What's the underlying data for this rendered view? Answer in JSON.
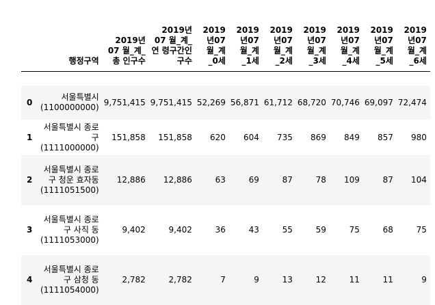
{
  "table": {
    "columns": [
      "",
      "행정구역",
      "2019년07 월_계_총 인구수",
      "2019년07 월_계_연 령구간인 구수",
      "2019 년07 월_계 _0세",
      "2019 년07 월_계 _1세",
      "2019 년07 월_계 _2세",
      "2019 년07 월_계 _3세",
      "2019 년07 월_계 _4세",
      "2019 년07 월_계 _5세",
      "2019 년07 월_계 _6세"
    ],
    "rows": [
      {
        "index": "0",
        "cells": [
          "서울특별시 (1100000000)",
          "9,751,415",
          "9,751,415",
          "52,269",
          "56,871",
          "61,712",
          "68,720",
          "70,746",
          "69,097",
          "72,474"
        ]
      },
      {
        "index": "1",
        "cells": [
          "서울특별시 종로구 (1111000000)",
          "151,858",
          "151,858",
          "620",
          "604",
          "735",
          "869",
          "849",
          "857",
          "980"
        ]
      },
      {
        "index": "2",
        "cells": [
          "서울특별시 종로구 청운 효자동 (1111051500)",
          "12,886",
          "12,886",
          "63",
          "69",
          "87",
          "78",
          "109",
          "87",
          "104"
        ]
      },
      {
        "index": "3",
        "cells": [
          "서울특별시 종로구 사직 동 (1111053000)",
          "9,402",
          "9,402",
          "36",
          "43",
          "55",
          "59",
          "75",
          "68",
          "75"
        ]
      },
      {
        "index": "4",
        "cells": [
          "서울특별시 종로구 삼청 동 (1111054000)",
          "2,782",
          "2,782",
          "7",
          "9",
          "13",
          "12",
          "11",
          "11",
          "9"
        ]
      }
    ]
  }
}
